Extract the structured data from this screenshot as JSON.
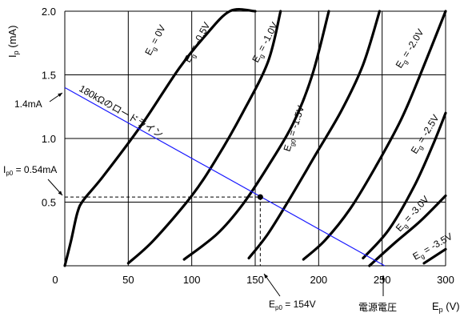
{
  "chart_data": {
    "type": "line",
    "title": "",
    "xlabel": "Ep (V)",
    "ylabel": "Ip (mA)",
    "xlim": [
      0,
      300
    ],
    "ylim": [
      0,
      2.0
    ],
    "grid": true,
    "x_ticks": [
      {
        "value": 0,
        "label": "0"
      },
      {
        "value": 50,
        "label": "50"
      },
      {
        "value": 100,
        "label": "100"
      },
      {
        "value": 150,
        "label": "150"
      },
      {
        "value": 200,
        "label": "200"
      },
      {
        "value": 250,
        "label": "250"
      },
      {
        "value": 300,
        "label": "300"
      }
    ],
    "y_ticks": [
      {
        "value": 0.5,
        "label": "0.5"
      },
      {
        "value": 1.0,
        "label": "1.0"
      },
      {
        "value": 1.5,
        "label": "1.5"
      },
      {
        "value": 2.0,
        "label": "2.0"
      }
    ],
    "series": [
      {
        "name": "Eg = 0V",
        "label_sub": "g",
        "label_rest": " = 0V",
        "x": [
          0,
          5,
          10,
          15,
          30,
          60,
          90,
          110,
          130,
          150
        ],
        "y": [
          0,
          0.2,
          0.42,
          0.52,
          0.7,
          1.1,
          1.55,
          1.8,
          2.0,
          2.0
        ]
      },
      {
        "name": "Eg = -0.5V",
        "label_sub": "g",
        "label_rest": " = -0.5V",
        "x": [
          50,
          70,
          100,
          120,
          140,
          160,
          170
        ],
        "y": [
          0.02,
          0.2,
          0.55,
          0.85,
          1.2,
          1.6,
          2.0
        ]
      },
      {
        "name": "Eg = -1.0V",
        "label_sub": "g",
        "label_rest": " = -1.0V",
        "x": [
          94,
          120,
          140,
          160,
          180,
          195,
          208
        ],
        "y": [
          0.05,
          0.25,
          0.48,
          0.78,
          1.12,
          1.5,
          2.0
        ]
      },
      {
        "name": "Eg = -1.5V",
        "label_sub": "g",
        "label_rest": " = -1.5V",
        "x": [
          145,
          160,
          178,
          198,
          218,
          235,
          248
        ],
        "y": [
          0.06,
          0.25,
          0.54,
          0.88,
          1.22,
          1.58,
          2.0
        ]
      },
      {
        "name": "Eg = -2.0V",
        "label_sub": "g",
        "label_rest": " = -2.0V",
        "x": [
          188,
          205,
          225,
          245,
          265,
          280,
          300
        ],
        "y": [
          0.05,
          0.2,
          0.45,
          0.78,
          1.15,
          1.5,
          2.0
        ]
      },
      {
        "name": "Eg = -2.5V",
        "label_sub": "g",
        "label_rest": " = -2.5V",
        "x": [
          235,
          255,
          275,
          290,
          300
        ],
        "y": [
          0.06,
          0.28,
          0.62,
          0.95,
          1.2
        ]
      },
      {
        "name": "Eg = -3.0V",
        "label_sub": "g",
        "label_rest": " = -3.0V",
        "x": [
          240,
          260,
          280,
          300
        ],
        "y": [
          0.0,
          0.18,
          0.35,
          0.55
        ]
      },
      {
        "name": "Eg = -3.5V",
        "label_sub": "g",
        "label_rest": " = -3.5V",
        "x": [
          283,
          300
        ],
        "y": [
          0.02,
          0.13
        ]
      }
    ],
    "load_line": {
      "label": "180kΩのロードライン",
      "x": [
        0,
        252
      ],
      "y": [
        1.4,
        0
      ]
    },
    "operating_point": {
      "x": 154,
      "y": 0.54
    },
    "annotations": {
      "load_line_intercept": "1.4mA",
      "ip0_label_main": "I",
      "ip0_label_sub": "p0",
      "ip0_label_rest": " = 0.54mA",
      "ep0_label_main": "E",
      "ep0_label_sub": "p0",
      "ep0_label_rest": " = 154V",
      "supply_label": "電源電圧",
      "ylabel_main": "I",
      "ylabel_sub": "p",
      "ylabel_rest": " (mA)",
      "xlabel_main": "E",
      "xlabel_sub": "p",
      "xlabel_rest": " (V)",
      "curve_label_main": "E",
      "mid_curve_name": "Eg0 = -1.5V",
      "mid_curve_sub": "g0",
      "mid_curve_rest": " = -1.5V"
    },
    "colors": {
      "curves": "#000000",
      "grid": "#000000",
      "load_line": "#1a1aff"
    }
  }
}
